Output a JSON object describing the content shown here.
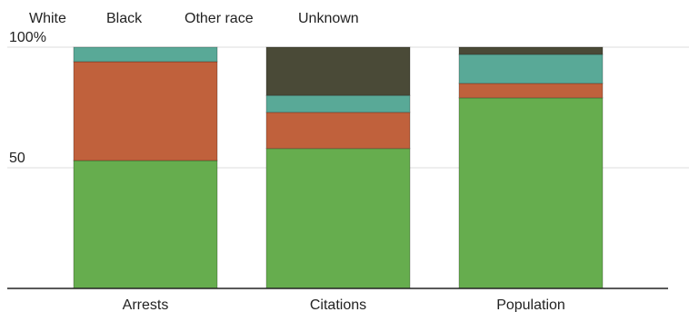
{
  "chart_data": {
    "type": "bar",
    "stacked": true,
    "categories": [
      "Arrests",
      "Citations",
      "Population"
    ],
    "series": [
      {
        "name": "White",
        "color": "#66ad4e",
        "values": [
          53,
          58,
          79
        ]
      },
      {
        "name": "Black",
        "color": "#c0613c",
        "values": [
          41,
          15,
          6
        ]
      },
      {
        "name": "Other race",
        "color": "#59a997",
        "values": [
          6,
          7,
          12
        ]
      },
      {
        "name": "Unknown",
        "color": "#4a4a37",
        "values": [
          0,
          20,
          3
        ]
      }
    ],
    "ylim": [
      0,
      100
    ],
    "y_ticks": [
      {
        "value": 50,
        "label": "50"
      },
      {
        "value": 100,
        "label": "100%"
      }
    ],
    "grid": true,
    "legend_position": "top-left"
  }
}
